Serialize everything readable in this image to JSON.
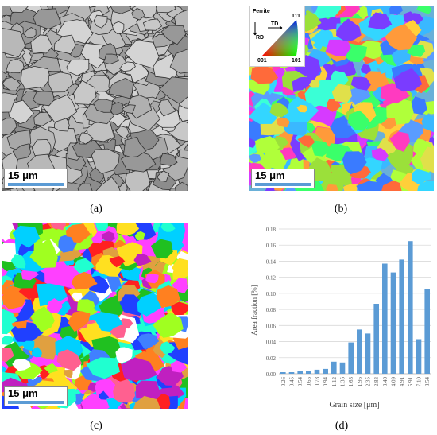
{
  "panels": {
    "a": {
      "caption": "(a)",
      "scalebar": "15 μm"
    },
    "b": {
      "caption": "(b)",
      "scalebar": "15 μm",
      "legend": {
        "title": "Ferrite",
        "td": "TD",
        "rd": "RD",
        "v111": "111",
        "v001": "001",
        "v101": "101"
      }
    },
    "c": {
      "caption": "(c)",
      "scalebar": "15 μm"
    },
    "d": {
      "caption": "(d)"
    }
  },
  "colors": {
    "scalebar": "#5b9bd5",
    "bar": "#5b9bd5",
    "grid": "#d9d9d9"
  },
  "chart_data": {
    "type": "bar",
    "title": "",
    "xlabel": "Grain size [μm]",
    "ylabel": "Area fraction [%]",
    "ylim": [
      0,
      0.18
    ],
    "yticks": [
      "0.00",
      "0.02",
      "0.04",
      "0.06",
      "0.08",
      "0.10",
      "0.12",
      "0.14",
      "0.16",
      "0.18"
    ],
    "grid": true,
    "categories": [
      "0.26",
      "0.45",
      "0.54",
      "0.65",
      "0.78",
      "0.94",
      "1.12",
      "1.35",
      "1.63",
      "1.95",
      "2.35",
      "2.83",
      "3.40",
      "4.09",
      "4.91",
      "5.91",
      "7.10",
      "8.54"
    ],
    "values": [
      0.002,
      0.002,
      0.003,
      0.004,
      0.005,
      0.006,
      0.015,
      0.014,
      0.039,
      0.055,
      0.05,
      0.087,
      0.137,
      0.126,
      0.142,
      0.165,
      0.043,
      0.105
    ]
  }
}
